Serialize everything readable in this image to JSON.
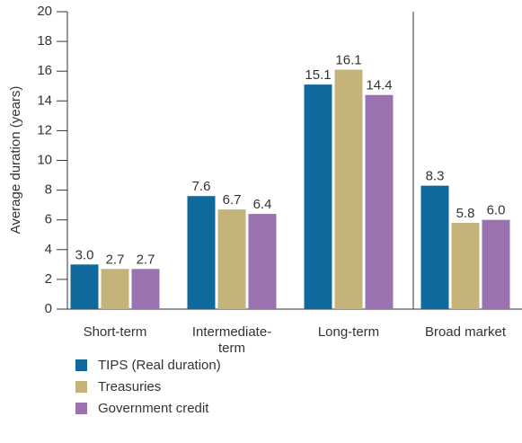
{
  "chart_data": {
    "type": "bar",
    "y_label": "Average duration (years)",
    "categories": [
      "Short-term",
      "Intermediate-\nterm",
      "Long-term",
      "Broad market"
    ],
    "series": [
      {
        "name": "TIPS (Real duration)",
        "color": "#10699c",
        "values": [
          3.0,
          7.6,
          15.1,
          8.3
        ],
        "value_labels": [
          "3.0",
          "7.6",
          "15.1",
          "8.3"
        ]
      },
      {
        "name": "Treasuries",
        "color": "#c4b47a",
        "values": [
          2.7,
          6.7,
          16.1,
          5.8
        ],
        "value_labels": [
          "2.7",
          "6.7",
          "16.1",
          "5.8"
        ]
      },
      {
        "name": "Government credit",
        "color": "#9a72b0",
        "values": [
          2.7,
          6.4,
          14.4,
          6.0
        ],
        "value_labels": [
          "2.7",
          "6.4",
          "14.4",
          "6.0"
        ]
      }
    ],
    "ylim": [
      0,
      20
    ],
    "yticks": [
      0,
      2,
      4,
      6,
      8,
      10,
      12,
      14,
      16,
      18,
      20
    ],
    "grid": false
  }
}
